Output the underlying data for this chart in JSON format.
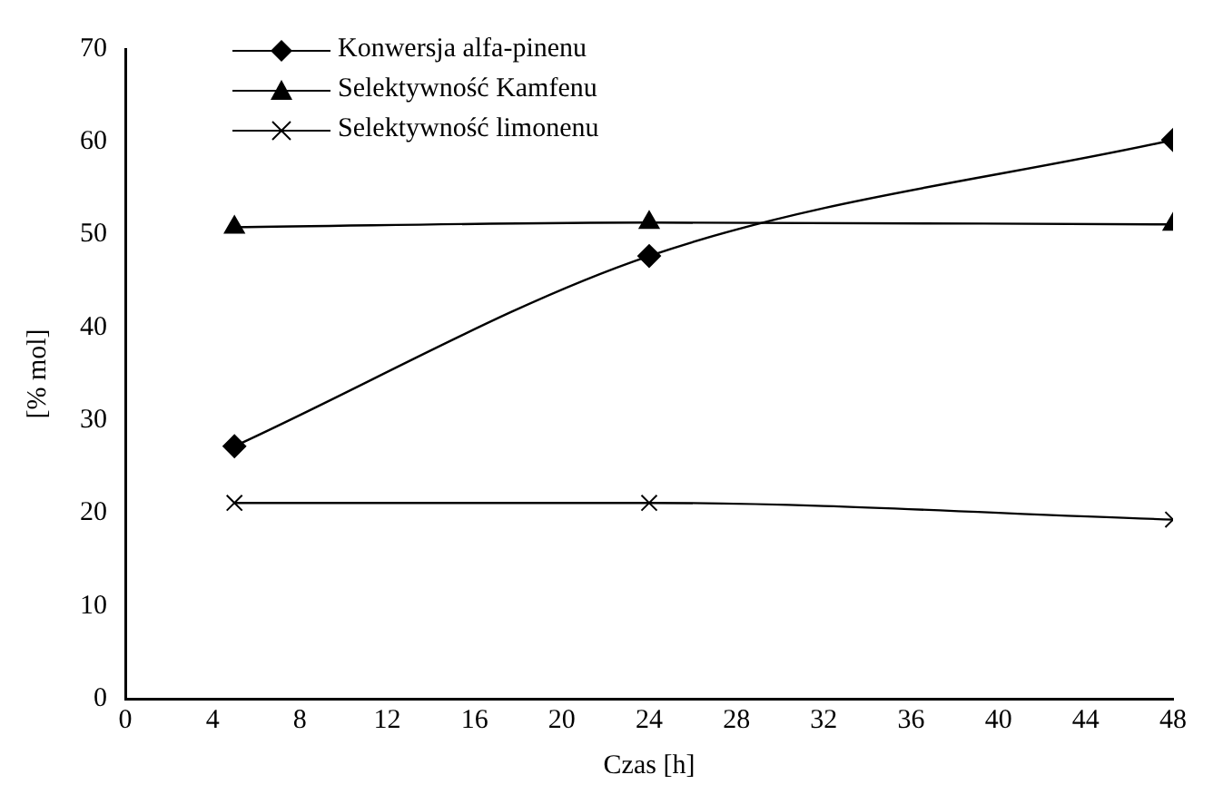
{
  "chart_data": {
    "type": "line",
    "xlabel": "Czas [h]",
    "ylabel": "[% mol]",
    "x": [
      5,
      24,
      48
    ],
    "series": [
      {
        "name": "Konwersja alfa-pinenu",
        "color": "#000000",
        "marker": "diamond",
        "values": [
          27.2,
          47.7,
          60.2
        ]
      },
      {
        "name": "Selektywność Kamfenu",
        "color": "#000000",
        "marker": "triangle",
        "values": [
          50.8,
          51.3,
          51.1
        ]
      },
      {
        "name": "Selektywność limonenu",
        "color": "#000000",
        "marker": "cross",
        "values": [
          21.1,
          21.1,
          19.3
        ]
      }
    ],
    "xlim": [
      0,
      48
    ],
    "xticks": [
      0,
      4,
      8,
      12,
      16,
      20,
      24,
      28,
      32,
      36,
      40,
      44,
      48
    ],
    "ylim": [
      0,
      70
    ],
    "yticks": [
      0,
      10,
      20,
      30,
      40,
      50,
      60,
      70
    ],
    "grid": false,
    "legend": "top left",
    "line_style": "solid"
  }
}
